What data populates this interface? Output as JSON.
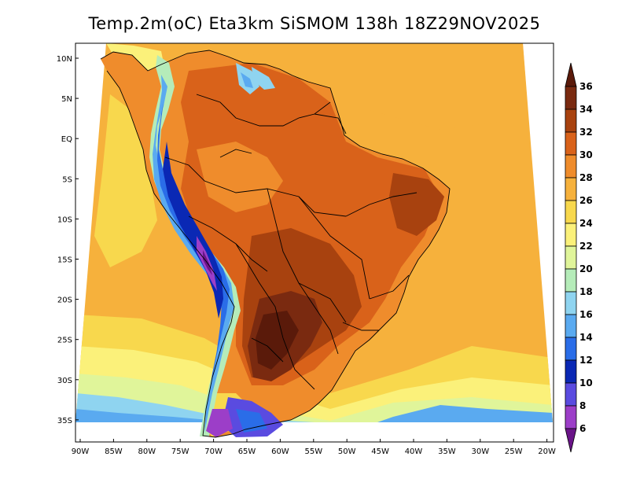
{
  "title": "Temp.2m(oC) Eta3km SiSMOM 138h 18Z29NOV2025",
  "map": {
    "variable": "2 m air temperature",
    "units": "oC",
    "latitude_ticks": [
      "10N",
      "5N",
      "EQ",
      "5S",
      "10S",
      "15S",
      "20S",
      "25S",
      "30S",
      "35S"
    ],
    "longitude_ticks": [
      "90W",
      "85W",
      "80W",
      "75W",
      "70W",
      "65W",
      "60W",
      "55W",
      "50W",
      "45W",
      "40W",
      "35W",
      "30W",
      "25W",
      "20W"
    ]
  },
  "colorbar": {
    "labels": [
      "36",
      "34",
      "32",
      "30",
      "28",
      "26",
      "24",
      "22",
      "20",
      "18",
      "16",
      "14",
      "12",
      "10",
      "8",
      "6"
    ],
    "colors": {
      "gt36": "#5a1a0a",
      "34_36": "#7a2a10",
      "32_34": "#a8420f",
      "30_32": "#d9621a",
      "28_30": "#ef8c2c",
      "26_28": "#f6b13c",
      "24_26": "#f8d84d",
      "22_24": "#fbf17a",
      "20_22": "#e0f59a",
      "18_20": "#b5ecb9",
      "16_18": "#8fd4f0",
      "14_16": "#5aaaf0",
      "12_14": "#2a6de8",
      "10_12": "#0a28b4",
      "8_10": "#5a4be0",
      "6_8": "#9c3ec8",
      "lt6": "#6a1488"
    }
  }
}
